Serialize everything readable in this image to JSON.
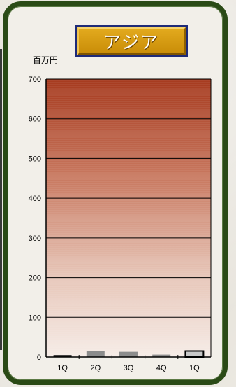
{
  "title": "アジア",
  "unit_label": "百万円",
  "chart_data": {
    "type": "bar",
    "title": "アジア",
    "ylabel": "百万円",
    "xlabel": "",
    "categories": [
      "1Q",
      "2Q",
      "3Q",
      "4Q",
      "1Q"
    ],
    "values": [
      5,
      15,
      13,
      6,
      15
    ],
    "ylim": [
      0,
      700
    ],
    "yticks": [
      0,
      100,
      200,
      300,
      400,
      500,
      600,
      700
    ],
    "grid": true,
    "legend": "none",
    "colors": {
      "bar": "#8c8c8c",
      "bar_first": "#222222",
      "bar_last": "#c8c8c8",
      "gradient_top": "#a63a1e",
      "gradient_bottom": "#f6ece7"
    }
  }
}
